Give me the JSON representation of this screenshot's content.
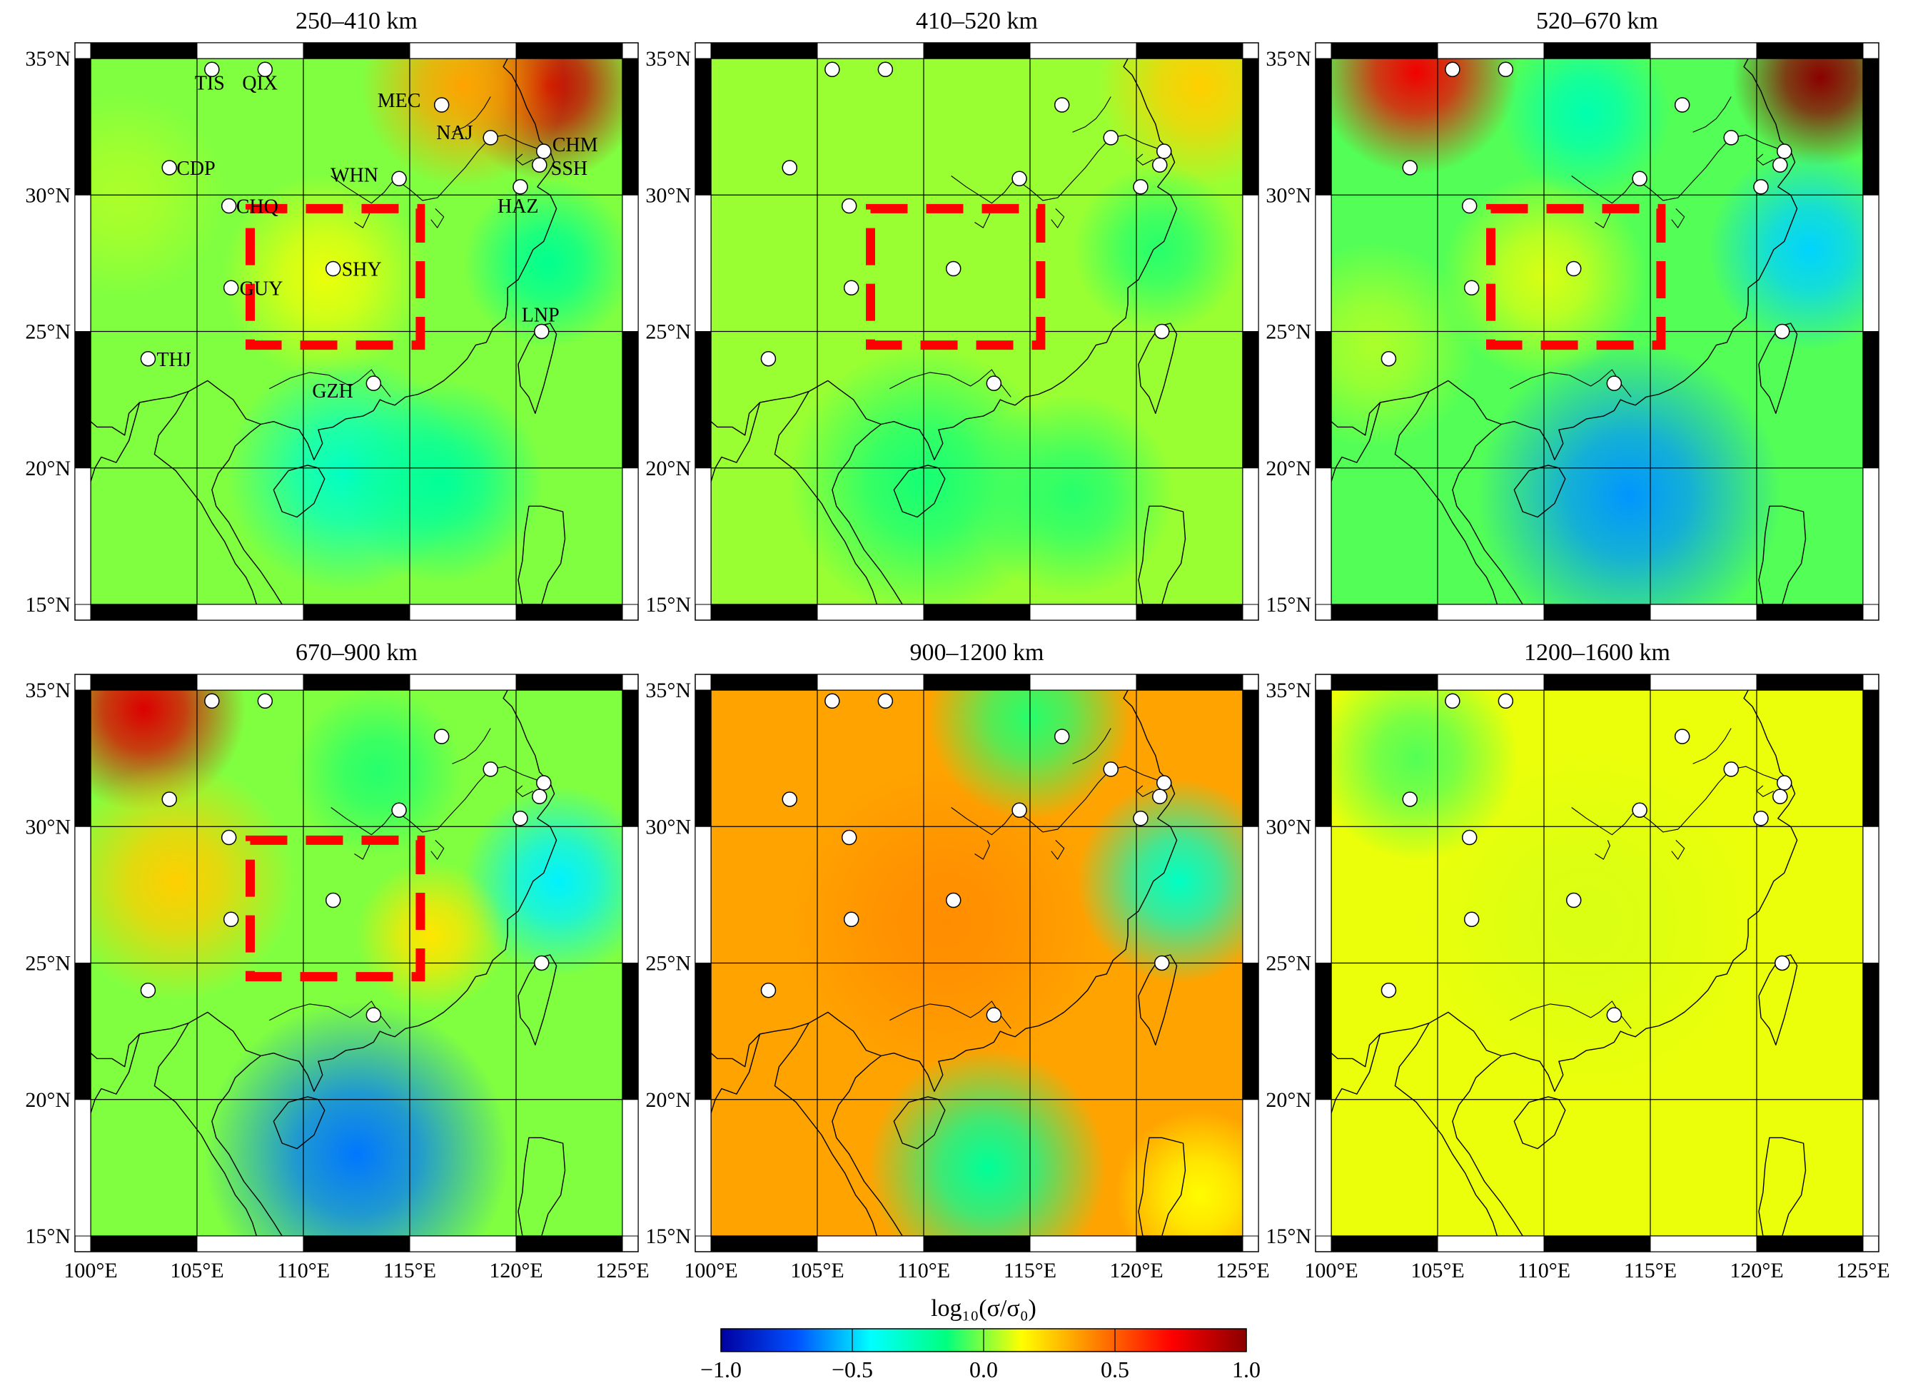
{
  "figure": {
    "colorbar": {
      "title": "log₁₀(σ/σ₀)",
      "min": -1.0,
      "max": 1.0,
      "tick_labels": [
        "−1.0",
        "−0.5",
        "0.0",
        "0.5",
        "1.0"
      ],
      "tick_values": [
        -1.0,
        -0.5,
        0.0,
        0.5,
        1.0
      ],
      "colormap": [
        "#0000a0",
        "#0050ff",
        "#00ffff",
        "#00ff7f",
        "#ffff00",
        "#ff8000",
        "#ff0000",
        "#8b0000"
      ]
    },
    "map_extent": {
      "lon_min": 100,
      "lon_max": 125,
      "lat_min": 15,
      "lat_max": 35
    },
    "lon_tick_labels": [
      "100°E",
      "105°E",
      "110°E",
      "115°E",
      "120°E",
      "125°E"
    ],
    "lat_tick_labels": [
      "35°N",
      "30°N",
      "25°N",
      "20°N",
      "15°N"
    ],
    "study_box": {
      "lon_min": 107.5,
      "lon_max": 115.5,
      "lat_min": 24.5,
      "lat_max": 29.5,
      "color": "#ff0000"
    },
    "stations": [
      {
        "code": "TIS",
        "lon": 105.7,
        "lat": 34.6
      },
      {
        "code": "QIX",
        "lon": 108.2,
        "lat": 34.6
      },
      {
        "code": "MEC",
        "lon": 116.5,
        "lat": 33.3
      },
      {
        "code": "NAJ",
        "lon": 118.8,
        "lat": 32.1
      },
      {
        "code": "CHM",
        "lon": 121.3,
        "lat": 31.6
      },
      {
        "code": "SSH",
        "lon": 121.1,
        "lat": 31.1
      },
      {
        "code": "CDP",
        "lon": 103.7,
        "lat": 31.0
      },
      {
        "code": "WHN",
        "lon": 114.5,
        "lat": 30.6
      },
      {
        "code": "HAZ",
        "lon": 120.2,
        "lat": 30.3
      },
      {
        "code": "CHQ",
        "lon": 106.5,
        "lat": 29.6
      },
      {
        "code": "SHY",
        "lon": 111.4,
        "lat": 27.3
      },
      {
        "code": "GUY",
        "lon": 106.6,
        "lat": 26.6
      },
      {
        "code": "LNP",
        "lon": 121.2,
        "lat": 25.0
      },
      {
        "code": "THJ",
        "lon": 102.7,
        "lat": 24.0
      },
      {
        "code": "GZH",
        "lon": 113.3,
        "lat": 23.1
      }
    ],
    "panels": [
      {
        "title": "250–410 km",
        "show_station_labels": true,
        "show_box": true,
        "background": 0.0,
        "anomalies": [
          {
            "lon": 121.5,
            "lat": 34.0,
            "value": 0.85,
            "r": 2.8
          },
          {
            "lon": 117.5,
            "lat": 34.0,
            "value": 0.35,
            "r": 3.0
          },
          {
            "lon": 112.0,
            "lat": 19.8,
            "value": -0.3,
            "r": 3.5
          },
          {
            "lon": 116.5,
            "lat": 19.5,
            "value": -0.2,
            "r": 3.0
          },
          {
            "lon": 121.5,
            "lat": 27.5,
            "value": -0.18,
            "r": 2.5
          },
          {
            "lon": 111.0,
            "lat": 27.0,
            "value": 0.12,
            "r": 3.0
          },
          {
            "lon": 101.5,
            "lat": 30.0,
            "value": 0.05,
            "r": 3.0
          }
        ]
      },
      {
        "title": "410–520 km",
        "show_station_labels": false,
        "show_box": true,
        "background": 0.03,
        "anomalies": [
          {
            "lon": 123.0,
            "lat": 34.0,
            "value": 0.25,
            "r": 3.0
          },
          {
            "lon": 110.0,
            "lat": 19.5,
            "value": -0.12,
            "r": 4.0
          },
          {
            "lon": 117.0,
            "lat": 19.0,
            "value": -0.1,
            "r": 3.0
          },
          {
            "lon": 121.0,
            "lat": 28.0,
            "value": -0.1,
            "r": 2.5
          }
        ]
      },
      {
        "title": "520–670 km",
        "show_station_labels": false,
        "show_box": true,
        "background": -0.05,
        "anomalies": [
          {
            "lon": 123.0,
            "lat": 34.3,
            "value": 1.0,
            "r": 2.6
          },
          {
            "lon": 104.0,
            "lat": 34.5,
            "value": 0.75,
            "r": 3.0
          },
          {
            "lon": 114.0,
            "lat": 19.0,
            "value": -0.6,
            "r": 4.5
          },
          {
            "lon": 122.5,
            "lat": 28.0,
            "value": -0.5,
            "r": 3.0
          },
          {
            "lon": 110.0,
            "lat": 27.0,
            "value": 0.1,
            "r": 3.0
          },
          {
            "lon": 112.0,
            "lat": 33.0,
            "value": -0.25,
            "r": 2.5
          },
          {
            "lon": 102.0,
            "lat": 24.5,
            "value": 0.05,
            "r": 3.0
          }
        ]
      },
      {
        "title": "670–900 km",
        "show_station_labels": false,
        "show_box": true,
        "background": 0.0,
        "anomalies": [
          {
            "lon": 102.5,
            "lat": 34.3,
            "value": 0.8,
            "r": 3.0
          },
          {
            "lon": 104.0,
            "lat": 28.0,
            "value": 0.25,
            "r": 3.5
          },
          {
            "lon": 112.5,
            "lat": 18.0,
            "value": -0.65,
            "r": 4.5
          },
          {
            "lon": 122.0,
            "lat": 28.0,
            "value": -0.45,
            "r": 2.8
          },
          {
            "lon": 113.5,
            "lat": 32.0,
            "value": -0.1,
            "r": 2.5
          },
          {
            "lon": 116.0,
            "lat": 26.0,
            "value": 0.2,
            "r": 2.2
          }
        ]
      },
      {
        "title": "900–1200 km",
        "show_station_labels": false,
        "show_box": false,
        "background": 0.35,
        "anomalies": [
          {
            "lon": 111.0,
            "lat": 26.5,
            "value": 0.4,
            "r": 4.5
          },
          {
            "lon": 122.0,
            "lat": 28.0,
            "value": -0.3,
            "r": 3.0
          },
          {
            "lon": 113.0,
            "lat": 17.5,
            "value": -0.2,
            "r": 3.5
          },
          {
            "lon": 115.0,
            "lat": 34.0,
            "value": -0.1,
            "r": 3.0
          },
          {
            "lon": 123.0,
            "lat": 16.5,
            "value": 0.15,
            "r": 2.5
          }
        ]
      },
      {
        "title": "1200–1600 km",
        "show_station_labels": false,
        "show_box": false,
        "background": 0.12,
        "anomalies": [
          {
            "lon": 112.0,
            "lat": 26.5,
            "value": 0.1,
            "r": 5.0
          },
          {
            "lon": 104.0,
            "lat": 32.5,
            "value": -0.05,
            "r": 3.0
          }
        ]
      }
    ],
    "coastline": [
      [
        108.0,
        21.6
      ],
      [
        108.6,
        21.7
      ],
      [
        109.3,
        21.5
      ],
      [
        109.8,
        21.4
      ],
      [
        110.2,
        20.9
      ],
      [
        110.5,
        20.3
      ],
      [
        110.9,
        20.9
      ],
      [
        110.7,
        21.4
      ],
      [
        111.4,
        21.5
      ],
      [
        112.0,
        21.8
      ],
      [
        112.8,
        21.9
      ],
      [
        113.3,
        22.1
      ],
      [
        113.6,
        22.5
      ],
      [
        113.9,
        22.4
      ],
      [
        114.3,
        22.3
      ],
      [
        114.8,
        22.6
      ],
      [
        115.4,
        22.7
      ],
      [
        116.0,
        22.9
      ],
      [
        116.6,
        23.2
      ],
      [
        117.2,
        23.6
      ],
      [
        117.7,
        24.0
      ],
      [
        118.1,
        24.5
      ],
      [
        118.6,
        24.6
      ],
      [
        118.9,
        25.1
      ],
      [
        119.5,
        25.5
      ],
      [
        119.6,
        26.0
      ],
      [
        119.6,
        26.6
      ],
      [
        120.1,
        26.9
      ],
      [
        120.5,
        27.5
      ],
      [
        120.8,
        28.0
      ],
      [
        121.3,
        28.3
      ],
      [
        121.6,
        28.9
      ],
      [
        121.9,
        29.5
      ],
      [
        121.6,
        30.0
      ],
      [
        121.0,
        30.3
      ],
      [
        121.5,
        30.8
      ],
      [
        121.8,
        31.2
      ],
      [
        121.6,
        31.6
      ],
      [
        121.1,
        32.0
      ],
      [
        120.9,
        32.6
      ],
      [
        120.5,
        33.2
      ],
      [
        120.2,
        33.8
      ],
      [
        119.8,
        34.4
      ],
      [
        119.4,
        34.7
      ],
      [
        119.6,
        35.0
      ]
    ],
    "coastline_south": [
      [
        108.0,
        21.6
      ],
      [
        107.5,
        21.3
      ],
      [
        106.8,
        20.8
      ],
      [
        106.5,
        20.3
      ],
      [
        106.0,
        19.8
      ],
      [
        105.7,
        19.2
      ],
      [
        105.9,
        18.6
      ],
      [
        106.5,
        18.0
      ],
      [
        107.2,
        17.0
      ],
      [
        108.0,
        16.2
      ],
      [
        108.6,
        15.5
      ],
      [
        109.0,
        15.0
      ]
    ],
    "hainan": [
      [
        108.6,
        19.2
      ],
      [
        109.3,
        19.9
      ],
      [
        110.2,
        20.1
      ],
      [
        110.7,
        20.0
      ],
      [
        111.0,
        19.6
      ],
      [
        110.5,
        18.7
      ],
      [
        109.7,
        18.2
      ],
      [
        109.0,
        18.4
      ],
      [
        108.6,
        19.2
      ]
    ],
    "taiwan": [
      [
        121.1,
        25.2
      ],
      [
        121.6,
        25.3
      ],
      [
        121.9,
        24.9
      ],
      [
        121.7,
        24.2
      ],
      [
        121.3,
        23.0
      ],
      [
        120.9,
        22.0
      ],
      [
        120.6,
        22.6
      ],
      [
        120.2,
        23.0
      ],
      [
        120.1,
        23.8
      ],
      [
        120.6,
        24.6
      ],
      [
        121.1,
        25.2
      ]
    ],
    "luzon": [
      [
        120.6,
        18.6
      ],
      [
        121.2,
        18.6
      ],
      [
        122.2,
        18.4
      ],
      [
        122.3,
        17.4
      ],
      [
        122.1,
        16.5
      ],
      [
        121.5,
        15.8
      ],
      [
        121.2,
        15.0
      ],
      [
        120.3,
        15.0
      ],
      [
        120.1,
        15.9
      ],
      [
        120.3,
        16.6
      ],
      [
        120.4,
        17.6
      ],
      [
        120.6,
        18.6
      ]
    ],
    "borders": [
      [
        [
          108.0,
          21.6
        ],
        [
          107.3,
          21.8
        ],
        [
          106.7,
          22.5
        ],
        [
          106.0,
          22.9
        ],
        [
          105.5,
          23.2
        ],
        [
          104.6,
          22.8
        ],
        [
          103.8,
          22.6
        ],
        [
          103.0,
          22.5
        ],
        [
          102.3,
          22.4
        ],
        [
          101.8,
          22.0
        ],
        [
          101.6,
          21.2
        ],
        [
          101.0,
          21.5
        ],
        [
          100.3,
          21.5
        ],
        [
          100.0,
          21.7
        ]
      ],
      [
        [
          104.6,
          22.8
        ],
        [
          104.0,
          22.0
        ],
        [
          103.2,
          21.2
        ],
        [
          103.0,
          20.5
        ],
        [
          104.0,
          19.9
        ],
        [
          104.6,
          19.3
        ],
        [
          105.2,
          18.7
        ],
        [
          105.7,
          18.0
        ],
        [
          106.3,
          17.3
        ],
        [
          106.8,
          16.5
        ],
        [
          107.3,
          16.0
        ],
        [
          107.6,
          15.5
        ],
        [
          107.8,
          15.0
        ]
      ],
      [
        [
          102.3,
          22.4
        ],
        [
          101.8,
          21.0
        ],
        [
          101.2,
          20.2
        ],
        [
          100.5,
          20.4
        ],
        [
          100.2,
          20.0
        ],
        [
          100.0,
          19.5
        ]
      ]
    ],
    "rivers": [
      [
        [
          111.3,
          30.7
        ],
        [
          112.0,
          30.3
        ],
        [
          112.6,
          30.0
        ],
        [
          113.2,
          29.7
        ],
        [
          113.8,
          30.1
        ],
        [
          114.3,
          30.6
        ],
        [
          115.0,
          30.2
        ],
        [
          115.6,
          29.8
        ],
        [
          116.3,
          29.9
        ],
        [
          117.0,
          30.5
        ],
        [
          117.6,
          31.0
        ],
        [
          118.2,
          31.6
        ],
        [
          118.8,
          32.1
        ],
        [
          119.5,
          32.2
        ],
        [
          120.3,
          31.9
        ],
        [
          121.0,
          31.7
        ],
        [
          121.5,
          31.6
        ]
      ],
      [
        [
          112.4,
          29.0
        ],
        [
          112.8,
          28.8
        ],
        [
          113.1,
          29.3
        ],
        [
          113.0,
          29.5
        ]
      ],
      [
        [
          116.0,
          29.1
        ],
        [
          116.3,
          28.8
        ],
        [
          116.6,
          29.2
        ],
        [
          116.2,
          29.5
        ]
      ],
      [
        [
          120.8,
          31.3
        ],
        [
          120.3,
          31.1
        ],
        [
          120.0,
          31.3
        ],
        [
          120.3,
          31.5
        ]
      ],
      [
        [
          117.0,
          32.3
        ],
        [
          117.6,
          32.5
        ],
        [
          118.1,
          32.8
        ],
        [
          118.5,
          33.2
        ],
        [
          118.8,
          33.6
        ]
      ],
      [
        [
          114.1,
          22.6
        ],
        [
          113.6,
          23.1
        ],
        [
          113.2,
          23.6
        ],
        [
          112.6,
          23.2
        ],
        [
          112.2,
          23.0
        ],
        [
          111.2,
          23.4
        ],
        [
          110.3,
          23.5
        ],
        [
          109.4,
          23.3
        ],
        [
          108.4,
          22.9
        ]
      ]
    ]
  }
}
